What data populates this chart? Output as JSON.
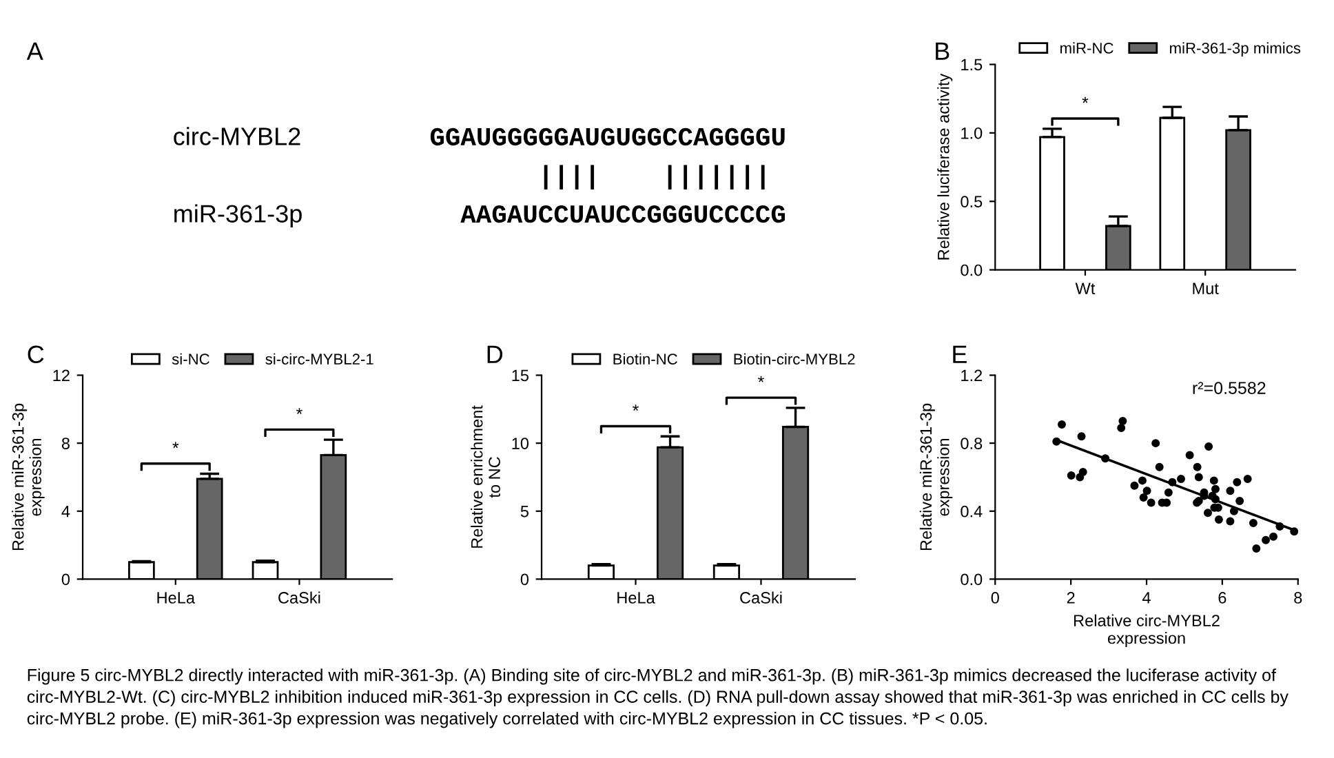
{
  "chart_data": [
    {
      "type": "other",
      "title": "A",
      "annotations": [
        "circ-MYBL2",
        "GGAUGGGGGAUGUGGCCAGGGGU",
        "||||    |||||||",
        "miR-361-3p",
        "AAGAUCCUAUCCGGGUCCCCG",
        "Figure 5 circ-MYBL2 directly interacted with miR-361-3p. (A) Binding site of circ-MYBL2 and miR-361-3p. (B) miR-361-3p mimics decreased the luciferase activity of circ-MYBL2-Wt. (C) circ-MYBL2 inhibition induced miR-361-3p expression in CC cells. (D) RNA pull-down assay showed that miR-361-3p was enriched in CC cells by circ-MYBL2 probe. (E) miR-361-3p expression was negatively correlated with circ-MYBL2 expression in CC tissues. *P < 0.05."
      ]
    },
    {
      "type": "bar",
      "title": "B",
      "ylabel": "Relative luciferase activity",
      "categories": [
        "Wt",
        "Mut"
      ],
      "legend": "top",
      "series": [
        {
          "name": "miR-NC",
          "color": "#ffffff",
          "values": [
            0.97,
            1.11
          ],
          "errors": [
            [
              0.97,
              1.03
            ],
            [
              1.11,
              1.19
            ]
          ]
        },
        {
          "name": "miR-361-3p mimics",
          "color": "#666666",
          "values": [
            0.32,
            1.02
          ],
          "errors": [
            [
              0.32,
              0.39
            ],
            [
              1.02,
              1.12
            ]
          ]
        }
      ],
      "ylim": [
        0,
        1.5
      ],
      "yticks": [
        {
          "value": 0,
          "label": "0.0"
        },
        {
          "value": 0.5,
          "label": "0.5"
        },
        {
          "value": 1,
          "label": "1.0"
        },
        {
          "value": 1.5,
          "label": "1.5"
        }
      ],
      "grid": false,
      "annotations": [
        "*"
      ]
    },
    {
      "type": "bar",
      "title": "C",
      "ylabel": "Relative miR-361-3p\nexpression",
      "categories": [
        "HeLa",
        "CaSki"
      ],
      "legend": "top",
      "series": [
        {
          "name": "si-NC",
          "color": "#ffffff",
          "values": [
            1.0,
            1.0
          ],
          "errors": [
            [
              1.0,
              1.05
            ],
            [
              1.0,
              1.08
            ]
          ]
        },
        {
          "name": "si-circ-MYBL2-1",
          "color": "#666666",
          "values": [
            5.9,
            7.3
          ],
          "errors": [
            [
              5.9,
              6.2
            ],
            [
              7.3,
              8.2
            ]
          ]
        }
      ],
      "ylim": [
        0,
        12
      ],
      "yticks": [
        0,
        4,
        8,
        12
      ],
      "grid": false,
      "annotations": [
        "*",
        "*"
      ]
    },
    {
      "type": "bar",
      "title": "D",
      "ylabel": "Relative enrichment\nto NC",
      "categories": [
        "HeLa",
        "CaSki"
      ],
      "legend": "top",
      "series": [
        {
          "name": "Biotin-NC",
          "color": "#ffffff",
          "values": [
            1.0,
            1.0
          ],
          "errors": [
            [
              1.0,
              1.1
            ],
            [
              1.0,
              1.1
            ]
          ]
        },
        {
          "name": "Biotin-circ-MYBL2",
          "color": "#666666",
          "values": [
            9.7,
            11.2
          ],
          "errors": [
            [
              9.7,
              10.5
            ],
            [
              11.2,
              12.6
            ]
          ]
        }
      ],
      "ylim": [
        0,
        15
      ],
      "yticks": [
        0,
        5,
        10,
        15
      ],
      "grid": false,
      "annotations": [
        "*",
        "*"
      ]
    },
    {
      "type": "scatter",
      "title": "E",
      "xlabel": "Relative circ-MYBL2\nexpression",
      "ylabel": "Relative miR-361-3p\nexpression",
      "marker": "circle",
      "series": [
        {
          "color": "#000000",
          "x": [
            1.62,
            1.76,
            2.01,
            2.24,
            2.28,
            2.32,
            2.91,
            3.33,
            3.37,
            3.68,
            3.89,
            3.92,
            4.01,
            4.12,
            4.24,
            4.34,
            4.41,
            4.53,
            4.58,
            4.68,
            4.91,
            5.14,
            5.33,
            5.34,
            5.38,
            5.38,
            5.52,
            5.52,
            5.62,
            5.64,
            5.74,
            5.78,
            5.79,
            5.82,
            5.82,
            5.89,
            5.91,
            6.21,
            6.21,
            6.31,
            6.39,
            6.46,
            6.67,
            6.82,
            6.9,
            7.15,
            7.35,
            7.52,
            7.9
          ],
          "values": [
            0.81,
            0.91,
            0.61,
            0.6,
            0.84,
            0.63,
            0.71,
            0.89,
            0.93,
            0.55,
            0.58,
            0.48,
            0.52,
            0.45,
            0.8,
            0.66,
            0.45,
            0.45,
            0.51,
            0.57,
            0.59,
            0.73,
            0.45,
            0.66,
            0.46,
            0.6,
            0.51,
            0.49,
            0.39,
            0.78,
            0.49,
            0.58,
            0.42,
            0.53,
            0.47,
            0.42,
            0.35,
            0.52,
            0.34,
            0.4,
            0.57,
            0.46,
            0.59,
            0.33,
            0.18,
            0.23,
            0.25,
            0.31,
            0.28
          ]
        },
        {
          "type": "line",
          "color": "#000000",
          "x": [
            1.6,
            8
          ],
          "values": [
            0.82,
            0.28
          ],
          "marker": "none"
        }
      ],
      "xlim": [
        0,
        8
      ],
      "xticks": [
        0,
        2,
        4,
        6,
        8
      ],
      "ylim": [
        0,
        1.2
      ],
      "yticks": [
        {
          "value": 0,
          "label": "0.0"
        },
        {
          "value": 0.4,
          "label": "0.4"
        },
        {
          "value": 0.8,
          "label": "0.8"
        },
        {
          "value": 1.2,
          "label": "1.2"
        }
      ],
      "grid": false,
      "annotations": [
        "r²=0.5582"
      ]
    }
  ]
}
